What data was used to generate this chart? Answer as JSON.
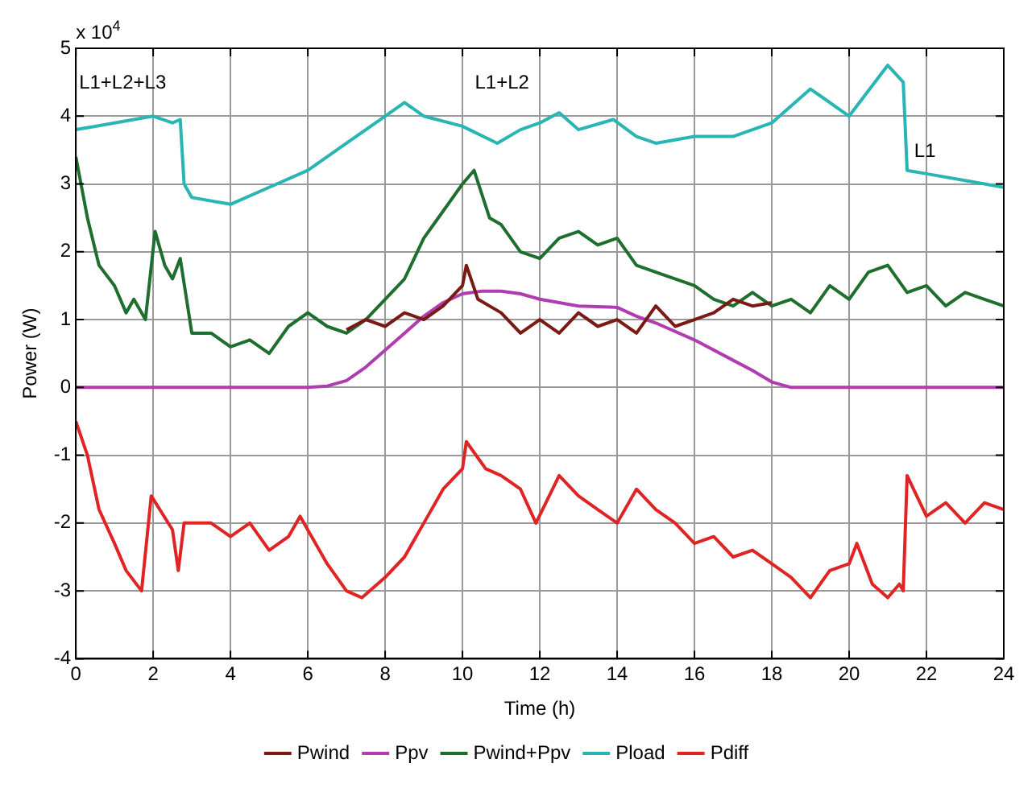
{
  "chart_data": {
    "type": "line",
    "xlabel": "Time (h)",
    "ylabel": "Power (W)",
    "xlim": [
      0,
      24
    ],
    "xticks": [
      0,
      2,
      4,
      6,
      8,
      10,
      12,
      14,
      16,
      18,
      20,
      22,
      24
    ],
    "ylim": [
      -4,
      5
    ],
    "yticks": [
      -4,
      -3,
      -2,
      -1,
      0,
      1,
      2,
      3,
      4,
      5
    ],
    "grid": true,
    "legend": "bottom",
    "line_style": "solid",
    "annotations": [
      "x 10$^{4}$",
      "L1+L2+L3",
      "L1+L2",
      {
        "text": "L1",
        "x": 21.6,
        "y": 3.4
      }
    ],
    "series": [
      {
        "name": "Pwind",
        "color": "#7a1a14",
        "x": [
          7,
          7.5,
          8,
          8.5,
          9,
          9.5,
          10,
          10.1,
          10.4,
          11,
          11.5,
          12,
          12.5,
          13,
          13.5,
          14,
          14.5,
          15,
          15.5,
          16,
          16.5,
          17,
          17.5,
          18
        ],
        "values": [
          0.85,
          1.0,
          0.9,
          1.1,
          1.0,
          1.2,
          1.5,
          1.8,
          1.3,
          1.1,
          0.8,
          1.0,
          0.8,
          1.1,
          0.9,
          1.0,
          0.8,
          1.2,
          0.9,
          1.0,
          1.1,
          1.3,
          1.2,
          1.25
        ]
      },
      {
        "name": "Ppv",
        "color": "#b03cb0",
        "x": [
          0,
          6,
          6.5,
          7,
          7.5,
          8,
          8.5,
          9,
          9.5,
          10,
          10.5,
          11,
          11.5,
          12,
          13,
          14,
          14.5,
          15,
          16,
          17,
          17.5,
          18,
          18.5,
          24
        ],
        "values": [
          0,
          0,
          0.02,
          0.1,
          0.3,
          0.55,
          0.8,
          1.05,
          1.25,
          1.38,
          1.42,
          1.42,
          1.38,
          1.3,
          1.2,
          1.18,
          1.05,
          0.95,
          0.7,
          0.4,
          0.25,
          0.08,
          0,
          0
        ]
      },
      {
        "name": "Pwind+Ppv",
        "color": "#1e6e2e",
        "x": [
          0,
          0.3,
          0.6,
          1,
          1.3,
          1.5,
          1.8,
          2.05,
          2.3,
          2.5,
          2.7,
          3,
          3.5,
          4,
          4.5,
          5,
          5.5,
          6,
          6.5,
          7,
          7.5,
          8,
          8.5,
          9,
          9.5,
          10,
          10.3,
          10.7,
          11,
          11.5,
          12,
          12.5,
          13,
          13.5,
          14,
          14.5,
          15,
          16,
          16.5,
          17,
          17.5,
          18,
          18.5,
          19,
          19.5,
          20,
          20.5,
          21,
          21.5,
          22,
          22.5,
          23,
          23.5,
          24
        ],
        "values": [
          3.4,
          2.5,
          1.8,
          1.5,
          1.1,
          1.3,
          1.0,
          2.3,
          1.8,
          1.6,
          1.9,
          0.8,
          0.8,
          0.6,
          0.7,
          0.5,
          0.9,
          1.1,
          0.9,
          0.8,
          1.0,
          1.3,
          1.6,
          2.2,
          2.6,
          3.0,
          3.2,
          2.5,
          2.4,
          2.0,
          1.9,
          2.2,
          2.3,
          2.1,
          2.2,
          1.8,
          1.7,
          1.5,
          1.3,
          1.2,
          1.4,
          1.2,
          1.3,
          1.1,
          1.5,
          1.3,
          1.7,
          1.8,
          1.4,
          1.5,
          1.2,
          1.4,
          1.3,
          1.2
        ]
      },
      {
        "name": "Pload",
        "color": "#2ab5b5",
        "x": [
          0,
          0.5,
          1,
          1.5,
          2,
          2.5,
          2.7,
          2.8,
          3,
          4,
          5,
          6,
          7,
          8,
          8.5,
          9,
          10,
          10.9,
          11.5,
          12,
          12.5,
          13,
          13.9,
          14.5,
          15,
          16,
          17,
          18,
          19,
          20,
          21,
          21.4,
          21.5,
          22,
          23,
          24
        ],
        "values": [
          3.8,
          3.85,
          3.9,
          3.95,
          4.0,
          3.9,
          3.95,
          3.0,
          2.8,
          2.7,
          2.95,
          3.2,
          3.6,
          4.0,
          4.2,
          4.0,
          3.85,
          3.6,
          3.8,
          3.9,
          4.05,
          3.8,
          3.95,
          3.7,
          3.6,
          3.7,
          3.7,
          3.9,
          4.4,
          4.0,
          4.75,
          4.5,
          3.2,
          3.15,
          3.05,
          2.95
        ]
      },
      {
        "name": "Pdiff",
        "color": "#e02424",
        "x": [
          0,
          0.3,
          0.6,
          1,
          1.3,
          1.7,
          1.95,
          2.5,
          2.65,
          2.8,
          3.5,
          4,
          4.5,
          5,
          5.5,
          5.8,
          6.2,
          6.5,
          7,
          7.4,
          8,
          8.5,
          9,
          9.5,
          10,
          10.1,
          10.6,
          11,
          11.5,
          11.9,
          12.5,
          13,
          13.5,
          14,
          14.5,
          15,
          15.5,
          16,
          16.5,
          17,
          17.5,
          18,
          18.5,
          19,
          19.5,
          20,
          20.2,
          20.6,
          21,
          21.3,
          21.4,
          21.5,
          22,
          22.5,
          23,
          23.5,
          24
        ],
        "values": [
          -0.5,
          -1.0,
          -1.8,
          -2.3,
          -2.7,
          -3.0,
          -1.6,
          -2.1,
          -2.7,
          -2.0,
          -2.0,
          -2.2,
          -2.0,
          -2.4,
          -2.2,
          -1.9,
          -2.3,
          -2.6,
          -3.0,
          -3.1,
          -2.8,
          -2.5,
          -2.0,
          -1.5,
          -1.2,
          -0.8,
          -1.2,
          -1.3,
          -1.5,
          -2.0,
          -1.3,
          -1.6,
          -1.8,
          -2.0,
          -1.5,
          -1.8,
          -2.0,
          -2.3,
          -2.2,
          -2.5,
          -2.4,
          -2.6,
          -2.8,
          -3.1,
          -2.7,
          -2.6,
          -2.3,
          -2.9,
          -3.1,
          -2.9,
          -3.0,
          -1.3,
          -1.9,
          -1.7,
          -2.0,
          -1.7,
          -1.8
        ]
      }
    ]
  }
}
